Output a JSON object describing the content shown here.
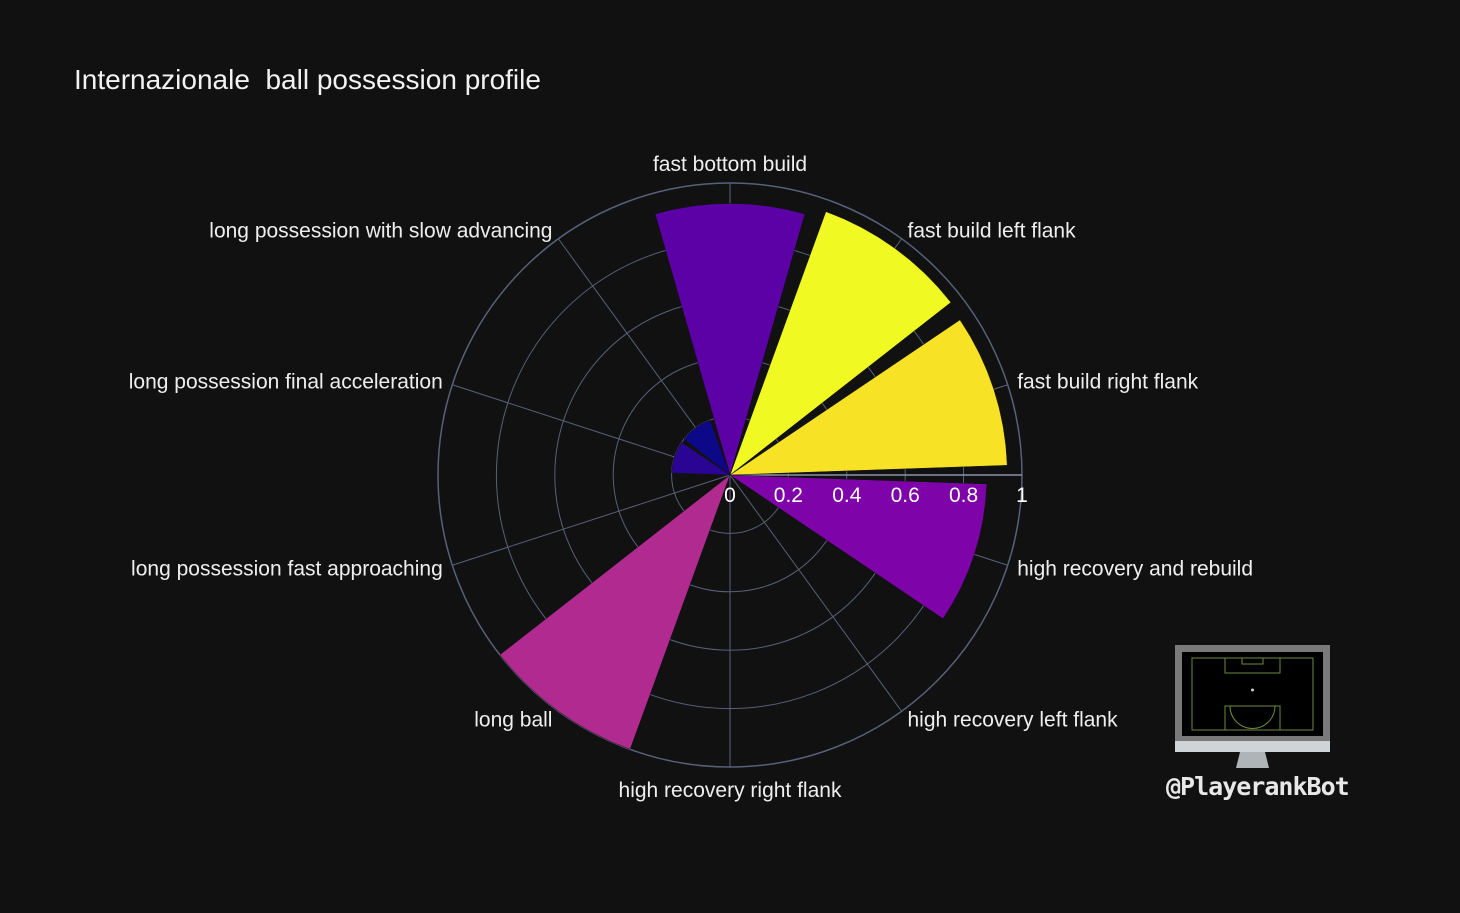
{
  "chart_data": {
    "type": "polar-bar",
    "title": "Internazionale  ball possession profile",
    "categories": [
      "fast bottom build",
      "fast build left flank",
      "fast build right flank",
      "high recovery and rebuild",
      "high recovery left flank",
      "high recovery right flank",
      "long ball",
      "long possession fast approaching",
      "long possession final acceleration",
      "long possession with slow advancing"
    ],
    "values": [
      0.93,
      0.96,
      0.95,
      0.88,
      0.0,
      0.0,
      1.0,
      0.0,
      0.2,
      0.2
    ],
    "colors": [
      "#5c01a6",
      "#f0f921",
      "#f7e225",
      "#7e03a8",
      "#cc4778",
      "#e16462",
      "#b12a90",
      "#350498",
      "#2a0593",
      "#0d0887"
    ],
    "radial_ticks": [
      "0",
      "0.2",
      "0.4",
      "0.6",
      "0.8",
      "1"
    ],
    "radial_range": [
      0,
      1
    ],
    "angular_direction": "clockwise",
    "start_direction": "north",
    "grid": true
  },
  "watermark": {
    "text": "@PlayerankBot",
    "icon": "monitor-football-pitch-icon"
  }
}
